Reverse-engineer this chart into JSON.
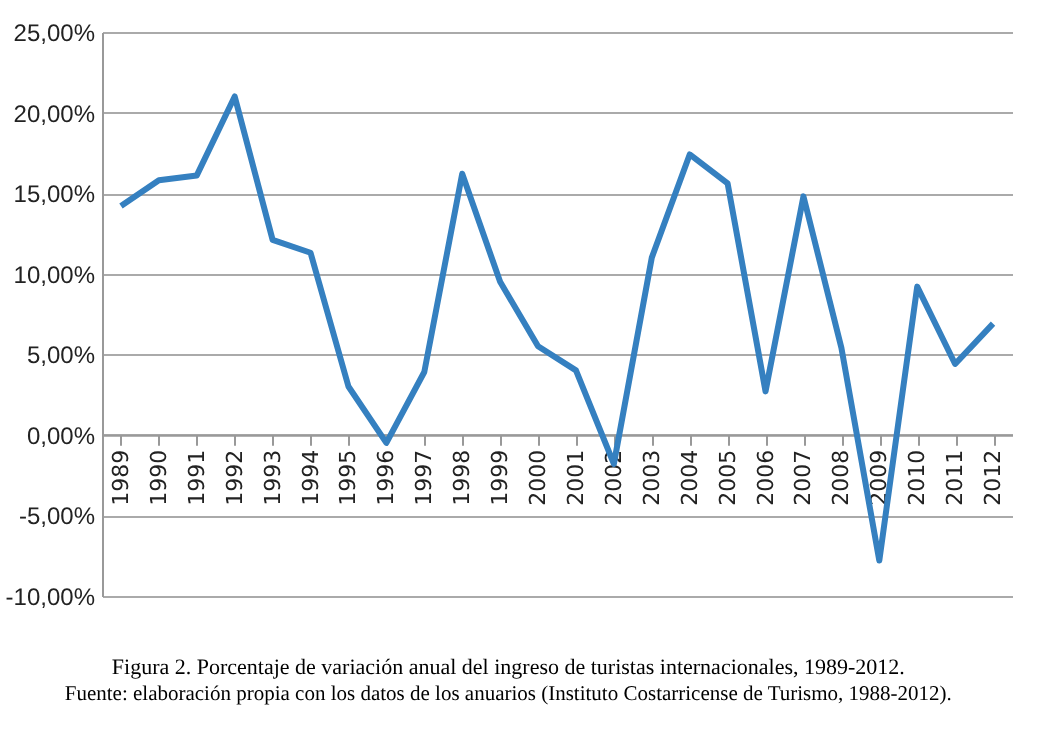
{
  "chart_data": {
    "type": "line",
    "categories": [
      "1989",
      "1990",
      "1991",
      "1992",
      "1993",
      "1994",
      "1995",
      "1996",
      "1997",
      "1998",
      "1999",
      "2000",
      "2001",
      "2002",
      "2003",
      "2004",
      "2005",
      "2006",
      "2007",
      "2008",
      "2009",
      "2010",
      "2011",
      "2012"
    ],
    "series": [
      {
        "color": "#3580c0",
        "values": [
          14.2,
          15.8,
          16.1,
          21.0,
          12.1,
          11.3,
          3.0,
          -0.5,
          3.9,
          16.2,
          9.5,
          5.5,
          4.0,
          -1.8,
          11.0,
          17.4,
          15.6,
          2.7,
          14.8,
          5.4,
          -7.8,
          9.2,
          4.4,
          6.9
        ]
      }
    ],
    "ylim": [
      -10,
      25
    ],
    "yticks": [
      {
        "value": -10,
        "label": "-10,00%"
      },
      {
        "value": -5,
        "label": "-5,00%"
      },
      {
        "value": 0,
        "label": "0,00%"
      },
      {
        "value": 5,
        "label": "5,00%"
      },
      {
        "value": 10,
        "label": "10,00%"
      },
      {
        "value": 15,
        "label": "15,00%"
      },
      {
        "value": 20,
        "label": "20,00%"
      },
      {
        "value": 25,
        "label": "25,00%"
      }
    ],
    "grid": "y",
    "marker": "none",
    "line_style": "solid",
    "annotations": [
      "Figura 2. Porcentaje de variación anual del ingreso de turistas internacionales, 1989-2012.",
      "Fuente: elaboración propia con los datos de los anuarios (Instituto Costarricense de Turismo, 1988-2012)."
    ]
  }
}
